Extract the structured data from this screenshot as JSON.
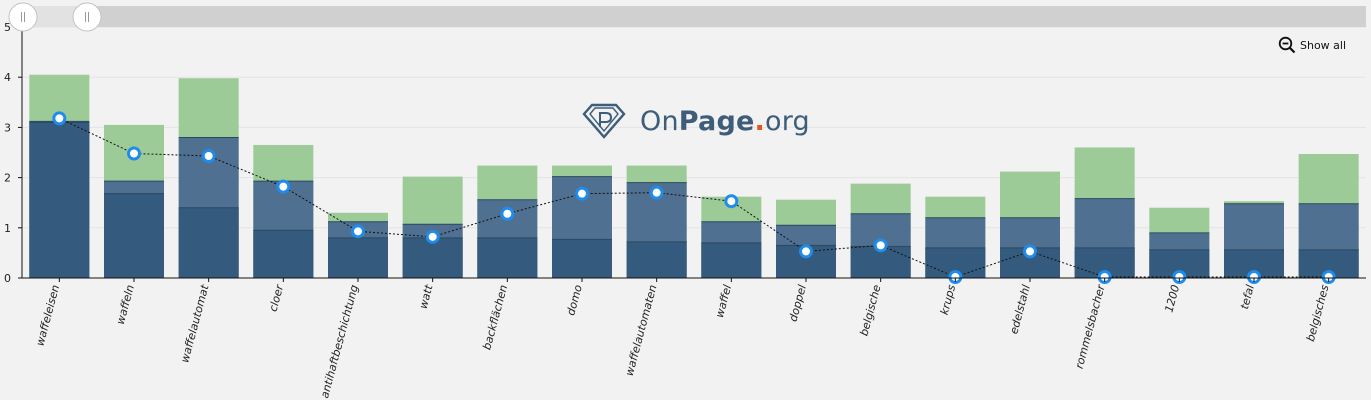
{
  "controls": {
    "show_all_label": "Show all",
    "zoom_icon": "zoom-out-icon",
    "slider_icon": "grip-icon"
  },
  "logo": {
    "part1": "On",
    "part2": "Page",
    "dot": ".",
    "part3": "org",
    "icon": "diamond-logo-icon"
  },
  "colors": {
    "light": "#9ccb97",
    "mid": "#4f7090",
    "dark": "#345a7d",
    "point": "#1f8ceb",
    "line": "#111111",
    "slider": "#d0d0d0"
  },
  "chart_data": {
    "type": "bar",
    "categories": [
      "waffeleisen",
      "waffeln",
      "waffelautomat",
      "cloer",
      "antihaftbeschichtung",
      "watt",
      "backflächen",
      "domo",
      "waffelautomaten",
      "waffel",
      "doppel",
      "belgische",
      "krups",
      "edelstahl",
      "rommelsbacher",
      "1200",
      "tefal",
      "belgisches"
    ],
    "series": [
      {
        "values": [
          4.05,
          3.05,
          3.98,
          2.65,
          1.3,
          2.02,
          2.24,
          2.24,
          2.24,
          1.62,
          1.56,
          1.88,
          1.62,
          2.12,
          2.6,
          1.4,
          1.53,
          2.47
        ]
      },
      {
        "values": [
          3.12,
          1.93,
          2.8,
          1.93,
          1.12,
          1.07,
          1.56,
          2.02,
          1.9,
          1.12,
          1.05,
          1.28,
          1.2,
          1.2,
          1.58,
          0.9,
          1.48,
          1.48
        ]
      },
      {
        "values": [
          3.1,
          1.68,
          1.4,
          0.95,
          0.8,
          0.8,
          0.8,
          0.77,
          0.72,
          0.7,
          0.65,
          0.63,
          0.6,
          0.6,
          0.6,
          0.56,
          0.56,
          0.56
        ]
      },
      {
        "values": [
          3.18,
          2.48,
          2.43,
          1.82,
          0.93,
          0.82,
          1.28,
          1.68,
          1.7,
          1.53,
          0.53,
          0.65,
          0.02,
          0.53,
          0.02,
          0.02,
          0.02,
          0.02
        ]
      }
    ],
    "ylim": [
      0,
      5
    ],
    "yticks": [
      "0",
      "1",
      "2",
      "3",
      "4",
      "5"
    ],
    "grid": true
  }
}
